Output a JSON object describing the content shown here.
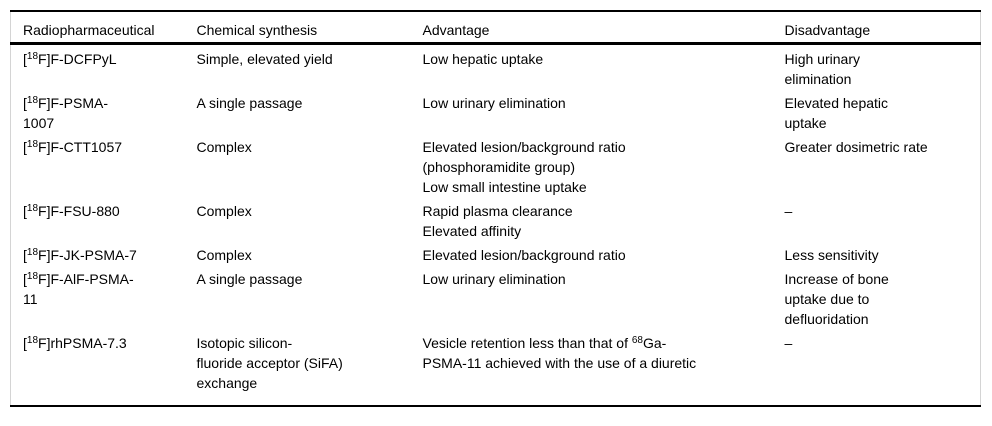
{
  "table": {
    "columns": [
      {
        "label": "Radiopharmaceutical"
      },
      {
        "label": "Chemical synthesis"
      },
      {
        "label": "Advantage"
      },
      {
        "label": "Disadvantage"
      }
    ],
    "rows": [
      {
        "drug": [
          "[^{18}F]F-DCFPyL"
        ],
        "synthesis": [
          "Simple, elevated yield"
        ],
        "advantage": [
          "Low hepatic uptake"
        ],
        "disadvantage": [
          "High urinary",
          "elimination"
        ]
      },
      {
        "drug": [
          "[^{18}F]F-PSMA-",
          "1007"
        ],
        "synthesis": [
          "A single passage"
        ],
        "advantage": [
          "Low urinary elimination"
        ],
        "disadvantage": [
          "Elevated hepatic",
          "uptake"
        ]
      },
      {
        "drug": [
          "[^{18}F]F-CTT1057"
        ],
        "synthesis": [
          "Complex"
        ],
        "advantage": [
          "Elevated lesion/background ratio",
          "(phosphoramidite group)",
          "Low small intestine uptake"
        ],
        "disadvantage": [
          "Greater dosimetric rate"
        ]
      },
      {
        "drug": [
          "[^{18}F]F-FSU-880"
        ],
        "synthesis": [
          "Complex"
        ],
        "advantage": [
          "Rapid plasma clearance",
          "Elevated affinity"
        ],
        "disadvantage": [
          "–"
        ]
      },
      {
        "drug": [
          "[^{18}F]F-JK-PSMA-7"
        ],
        "synthesis": [
          "Complex"
        ],
        "advantage": [
          "Elevated lesion/background ratio"
        ],
        "disadvantage": [
          "Less sensitivity"
        ]
      },
      {
        "drug": [
          "[^{18}F]F-AlF-PSMA-",
          "11"
        ],
        "synthesis": [
          "A single passage"
        ],
        "advantage": [
          "Low urinary elimination"
        ],
        "disadvantage": [
          "Increase of bone",
          "uptake due to",
          "defluoridation"
        ]
      },
      {
        "drug": [
          "[^{18}F]rhPSMA-7.3"
        ],
        "synthesis": [
          "Isotopic silicon-",
          "fluoride acceptor (SiFA)",
          "exchange"
        ],
        "advantage": [
          "Vesicle retention less than that of ^{68}Ga-",
          "PSMA-11 achieved with the use of a diuretic"
        ],
        "disadvantage": [
          "–"
        ]
      }
    ]
  }
}
